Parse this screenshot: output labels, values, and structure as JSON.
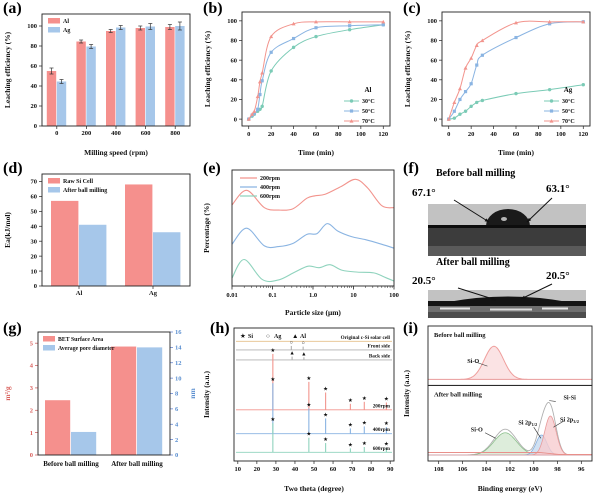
{
  "panel_letters": [
    "(a)",
    "(b)",
    "(c)",
    "(d)",
    "(e)",
    "(f)",
    "(g)",
    "(h)",
    "(i)"
  ],
  "colors": {
    "salmon": "#f5908d",
    "lightblue": "#a6c7ea",
    "teal_line": "#7bcbb6",
    "blue_line": "#8ab4e2",
    "red_line": "#f2948d",
    "orange_line": "#e6c18b",
    "gray_line": "#b0b0b0",
    "green_line": "#8fd3bd",
    "left_axis_red": "#d9605c",
    "right_axis_blue": "#5b8fd0",
    "xps_green_fill": "#d4e8d2",
    "xps_green_stroke": "#8cc08c",
    "xps_blue_fill": "#c6d9ef",
    "xps_blue_stroke": "#86aede",
    "xps_pink_fill": "#f7cdcf",
    "xps_pink_stroke": "#e89b9b",
    "xps_top_fill": "#fbe3e4",
    "xps_top_stroke": "#ef9e9c"
  },
  "chart_data": [
    {
      "id": "a",
      "type": "bar",
      "xlabel": "Milling speed (rpm)",
      "ylabel": "Leaching efficiency (%)",
      "categories": [
        "0",
        "200",
        "400",
        "600",
        "800"
      ],
      "ylim": [
        0,
        112
      ],
      "yticks": [
        0,
        20,
        40,
        60,
        80,
        100
      ],
      "series": [
        {
          "name": "Al",
          "color": "#f5908d",
          "values": [
            55,
            84.5,
            95,
            98,
            99
          ],
          "errors": [
            3,
            1.5,
            1.5,
            2,
            2.5
          ]
        },
        {
          "name": "Ag",
          "color": "#a6c7ea",
          "values": [
            44.5,
            79.5,
            98.5,
            99.5,
            100
          ],
          "errors": [
            2,
            2,
            2,
            3,
            4
          ]
        }
      ],
      "legend_position": "top-left"
    },
    {
      "id": "b",
      "type": "line",
      "xlabel": "Time (min)",
      "ylabel": "Leaching efficiency (%)",
      "xlim": [
        -6,
        126
      ],
      "xticks": [
        0,
        20,
        40,
        60,
        80,
        100,
        120
      ],
      "ylim": [
        -7,
        109
      ],
      "yticks": [
        0,
        20,
        40,
        60,
        80,
        100
      ],
      "legend_title": "Al",
      "legend_position": "lower-right",
      "x": [
        0,
        3,
        5,
        8,
        10,
        12,
        20,
        40,
        60,
        90,
        120
      ],
      "series": [
        {
          "name": "30°C",
          "color": "#7bcbb6",
          "marker": "circle",
          "y": [
            0,
            3,
            5,
            8,
            10,
            13,
            49,
            73,
            84,
            91,
            96
          ]
        },
        {
          "name": "50°C",
          "color": "#8ab4e2",
          "marker": "square",
          "y": [
            0,
            4,
            6,
            10,
            25,
            39,
            68,
            82,
            93,
            95,
            96
          ]
        },
        {
          "name": "70°C",
          "color": "#f2948d",
          "marker": "triangle",
          "y": [
            0,
            5,
            8,
            23,
            38,
            47,
            84,
            97,
            99,
            99,
            99
          ]
        }
      ]
    },
    {
      "id": "c",
      "type": "line",
      "xlabel": "Time (min)",
      "ylabel": "Leaching efficiency (%)",
      "xlim": [
        -6,
        126
      ],
      "xticks": [
        0,
        20,
        40,
        60,
        80,
        100,
        120
      ],
      "ylim": [
        -7,
        109
      ],
      "yticks": [
        0,
        20,
        40,
        60,
        80,
        100
      ],
      "legend_title": "Ag",
      "legend_position": "lower-right",
      "x": [
        0,
        5,
        10,
        15,
        20,
        25,
        30,
        60,
        90,
        120
      ],
      "series": [
        {
          "name": "30°C",
          "color": "#7bcbb6",
          "marker": "circle",
          "y": [
            0,
            1,
            5,
            8,
            13,
            17,
            19,
            26,
            30,
            35
          ]
        },
        {
          "name": "50°C",
          "color": "#8ab4e2",
          "marker": "square",
          "y": [
            0,
            8,
            20,
            28,
            36,
            55,
            65,
            83,
            97,
            99
          ]
        },
        {
          "name": "70°C",
          "color": "#f2948d",
          "marker": "triangle",
          "y": [
            0,
            17,
            31,
            52,
            62,
            75,
            80,
            98,
            99,
            99
          ]
        }
      ]
    },
    {
      "id": "d",
      "type": "bar",
      "xlabel": "",
      "ylabel": "Ea(kJ/mol)",
      "categories": [
        "Al",
        "Ag"
      ],
      "ylim": [
        0,
        75
      ],
      "yticks": [
        0,
        10,
        20,
        30,
        40,
        50,
        60,
        70
      ],
      "series": [
        {
          "name": "Raw Si Cell",
          "color": "#f5908d",
          "values": [
            57,
            68
          ]
        },
        {
          "name": "After ball milling",
          "color": "#a6c7ea",
          "values": [
            41,
            36
          ]
        }
      ],
      "legend_position": "top-left"
    },
    {
      "id": "e",
      "type": "logline",
      "xlabel": "Particle size (μm)",
      "ylabel": "Percentage (%)",
      "xtick_labels": [
        "0.01",
        "0.1",
        "1.0",
        "10",
        "100"
      ],
      "series": [
        {
          "name": "200rpm",
          "color": "#f2948d",
          "base": 0.58,
          "amp": 0.34,
          "pts": [
            [
              -2,
              0.35
            ],
            [
              -1.64,
              0.72
            ],
            [
              -1.2,
              0.28
            ],
            [
              -0.85,
              0.22
            ],
            [
              -0.5,
              0.25
            ],
            [
              -0.15,
              0.52
            ],
            [
              0.05,
              0.58
            ],
            [
              0.3,
              0.62
            ],
            [
              0.7,
              0.82
            ],
            [
              1.05,
              1.0
            ],
            [
              1.35,
              0.78
            ],
            [
              1.7,
              0.33
            ],
            [
              2,
              0.28
            ]
          ]
        },
        {
          "name": "400rpm",
          "color": "#8ab4e2",
          "base": 0.3,
          "amp": 0.33,
          "pts": [
            [
              -2,
              0.18
            ],
            [
              -1.64,
              0.6
            ],
            [
              -1.2,
              0.14
            ],
            [
              -0.85,
              0.12
            ],
            [
              -0.5,
              0.2
            ],
            [
              -0.15,
              0.44
            ],
            [
              0.1,
              0.46
            ],
            [
              0.35,
              0.72
            ],
            [
              0.62,
              0.52
            ],
            [
              0.95,
              0.38
            ],
            [
              1.3,
              0.3
            ],
            [
              1.7,
              0.18
            ],
            [
              2,
              0.08
            ]
          ]
        },
        {
          "name": "600rpm",
          "color": "#8fd3bd",
          "base": 0.03,
          "amp": 0.32,
          "pts": [
            [
              -2,
              0.12
            ],
            [
              -1.7,
              0.62
            ],
            [
              -1.25,
              0.08
            ],
            [
              -0.85,
              0.07
            ],
            [
              -0.45,
              0.28
            ],
            [
              -0.12,
              0.44
            ],
            [
              0.15,
              0.4
            ],
            [
              0.42,
              0.48
            ],
            [
              0.72,
              0.33
            ],
            [
              1.1,
              0.28
            ],
            [
              1.5,
              0.26
            ],
            [
              1.8,
              0.13
            ],
            [
              2,
              0.04
            ]
          ]
        }
      ]
    },
    {
      "id": "g",
      "type": "dualbar",
      "categories": [
        "Before ball milling",
        "After ball milling"
      ],
      "left_ylabel": "m²/g",
      "right_ylabel": "nm",
      "left_ylim": [
        0,
        5.5
      ],
      "left_yticks": [
        0,
        1,
        2,
        3,
        4,
        5
      ],
      "right_ylim": [
        0,
        16
      ],
      "right_yticks": [
        0,
        2,
        4,
        6,
        8,
        10,
        12,
        14,
        16
      ],
      "series": [
        {
          "name": "BET Surface Area",
          "color": "#f5908d",
          "axis": "left",
          "values": [
            2.45,
            4.85
          ]
        },
        {
          "name": "Average pore diameter",
          "color": "#a6c7ea",
          "axis": "right",
          "values": [
            3.0,
            14.0
          ]
        }
      ],
      "legend_position": "top-left"
    },
    {
      "id": "h",
      "type": "xrd",
      "xlabel": "Two theta (degree)",
      "ylabel": "Intensity (a.u.)",
      "xlim": [
        8,
        92
      ],
      "xticks": [
        10,
        20,
        30,
        40,
        50,
        60,
        70,
        80,
        90
      ],
      "legend": [
        {
          "sym": "★",
          "label": "Si"
        },
        {
          "sym": "○",
          "label": "Ag"
        },
        {
          "sym": "▲",
          "label": "Al"
        }
      ],
      "rows": [
        {
          "name": "Original c-Si solar cell",
          "color": "#e6c18b",
          "base": 0.1,
          "peaks": []
        },
        {
          "name": "Front side",
          "color": "#b0b0b0",
          "base": 0.165,
          "peaks": [
            {
              "x": 38.1,
              "h": 0.03,
              "sym": "○"
            },
            {
              "x": 44.3,
              "h": 0.025,
              "sym": "○"
            }
          ]
        },
        {
          "name": "Back side",
          "color": "#b0b0b0",
          "base": 0.24,
          "peaks": [
            {
              "x": 38.5,
              "h": 0.025,
              "sym": "▲"
            },
            {
              "x": 44.7,
              "h": 0.02,
              "sym": "▲"
            }
          ]
        },
        {
          "name": "200rpm",
          "color": "#f2948d",
          "base": 0.615,
          "peaks": [
            {
              "x": 28.4,
              "h": 0.42,
              "sym": "★"
            },
            {
              "x": 47.3,
              "h": 0.21,
              "sym": "★"
            },
            {
              "x": 56.1,
              "h": 0.13,
              "sym": "★"
            },
            {
              "x": 69.1,
              "h": 0.045,
              "sym": "★"
            },
            {
              "x": 76.4,
              "h": 0.06,
              "sym": "★"
            },
            {
              "x": 88.0,
              "h": 0.055,
              "sym": "★"
            }
          ]
        },
        {
          "name": "400rpm",
          "color": "#8ab4e2",
          "base": 0.795,
          "peaks": [
            {
              "x": 28.4,
              "h": 0.38,
              "sym": "★"
            },
            {
              "x": 47.3,
              "h": 0.19,
              "sym": "★"
            },
            {
              "x": 56.1,
              "h": 0.115,
              "sym": "★"
            },
            {
              "x": 69.1,
              "h": 0.04,
              "sym": "★"
            },
            {
              "x": 76.4,
              "h": 0.055,
              "sym": "★"
            },
            {
              "x": 88.0,
              "h": 0.05,
              "sym": "★"
            }
          ]
        },
        {
          "name": "600rpm",
          "color": "#8fd3bd",
          "base": 0.935,
          "peaks": [
            {
              "x": 28.4,
              "h": 0.22,
              "sym": "★"
            },
            {
              "x": 47.3,
              "h": 0.11,
              "sym": "★"
            },
            {
              "x": 56.1,
              "h": 0.07,
              "sym": "★"
            },
            {
              "x": 69.1,
              "h": 0.03,
              "sym": "★"
            },
            {
              "x": 76.4,
              "h": 0.04,
              "sym": "★"
            },
            {
              "x": 88.0,
              "h": 0.035,
              "sym": "★"
            }
          ]
        }
      ]
    },
    {
      "id": "i",
      "type": "xps",
      "xlabel": "Binding energy (eV)",
      "ylabel": "Intensity (a.u.)",
      "xlim": [
        108.9,
        95.1
      ],
      "xticks": [
        108,
        106,
        104,
        102,
        100,
        98,
        96
      ],
      "top_panel": {
        "title": "Before ball milling",
        "peak": {
          "label": "Si-O",
          "center": 103.35,
          "sigma": 0.8,
          "height": 0.8
        }
      },
      "bottom_panel": {
        "title": "After ball milling",
        "envelope_label": "Si-Si",
        "peaks": [
          {
            "label": "Si-O",
            "center": 102.4,
            "sigma": 0.95,
            "height": 0.4,
            "fill": "#d4e8d2",
            "stroke": "#8cc08c"
          },
          {
            "label": "Si 2p 1/2",
            "center": 99.35,
            "sigma": 0.45,
            "height": 0.36,
            "fill": "#c6d9ef",
            "stroke": "#86aede"
          },
          {
            "label": "Si 2p 3/2",
            "center": 98.6,
            "sigma": 0.48,
            "height": 0.7,
            "fill": "#f7cdcf",
            "stroke": "#e89b9b"
          }
        ]
      }
    }
  ],
  "contact_angle": {
    "before_title": "Before ball milling",
    "before_left_angle": "67.1°",
    "before_right_angle": "63.1°",
    "after_title": "After ball milling",
    "after_left_angle": "20.5°",
    "after_right_angle": "20.5°"
  }
}
